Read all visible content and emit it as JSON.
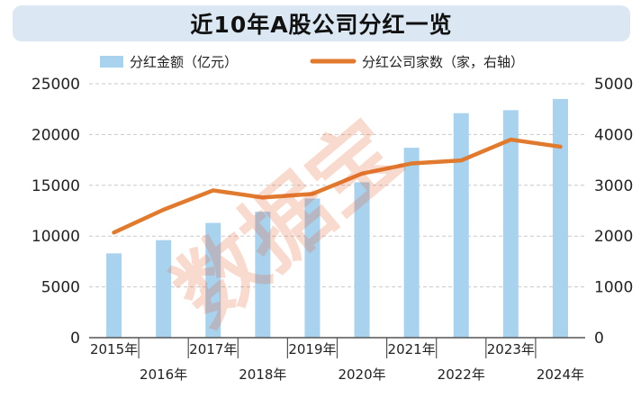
{
  "header": {
    "title": "近10年A股公司分红一览"
  },
  "watermark": "数据宝",
  "chart_data": {
    "type": "bar+line",
    "title": "近10年A股公司分红一览",
    "categories": [
      "2015年",
      "2016年",
      "2017年",
      "2018年",
      "2019年",
      "2020年",
      "2021年",
      "2022年",
      "2023年",
      "2024年"
    ],
    "series": [
      {
        "name": "分红金额（亿元）",
        "type": "bar",
        "axis": "left",
        "color": "#a9d2ee",
        "values": [
          8300,
          9600,
          11300,
          12400,
          13700,
          15300,
          18700,
          22100,
          22400,
          23500
        ]
      },
      {
        "name": "分红公司家数（家，右轴）",
        "type": "line",
        "axis": "right",
        "color": "#e07a2e",
        "values": [
          2070,
          2520,
          2900,
          2760,
          2830,
          3230,
          3430,
          3490,
          3900,
          3760
        ]
      }
    ],
    "y_left": {
      "min": 0,
      "max": 25000,
      "ticks": [
        "0",
        "5000",
        "10000",
        "15000",
        "20000",
        "25000"
      ]
    },
    "y_right": {
      "min": 0,
      "max": 5000,
      "ticks": [
        "0",
        "1000",
        "2000",
        "3000",
        "4000",
        "5000"
      ]
    },
    "grid": "horizontal-dashed",
    "legend_position": "top-center"
  }
}
